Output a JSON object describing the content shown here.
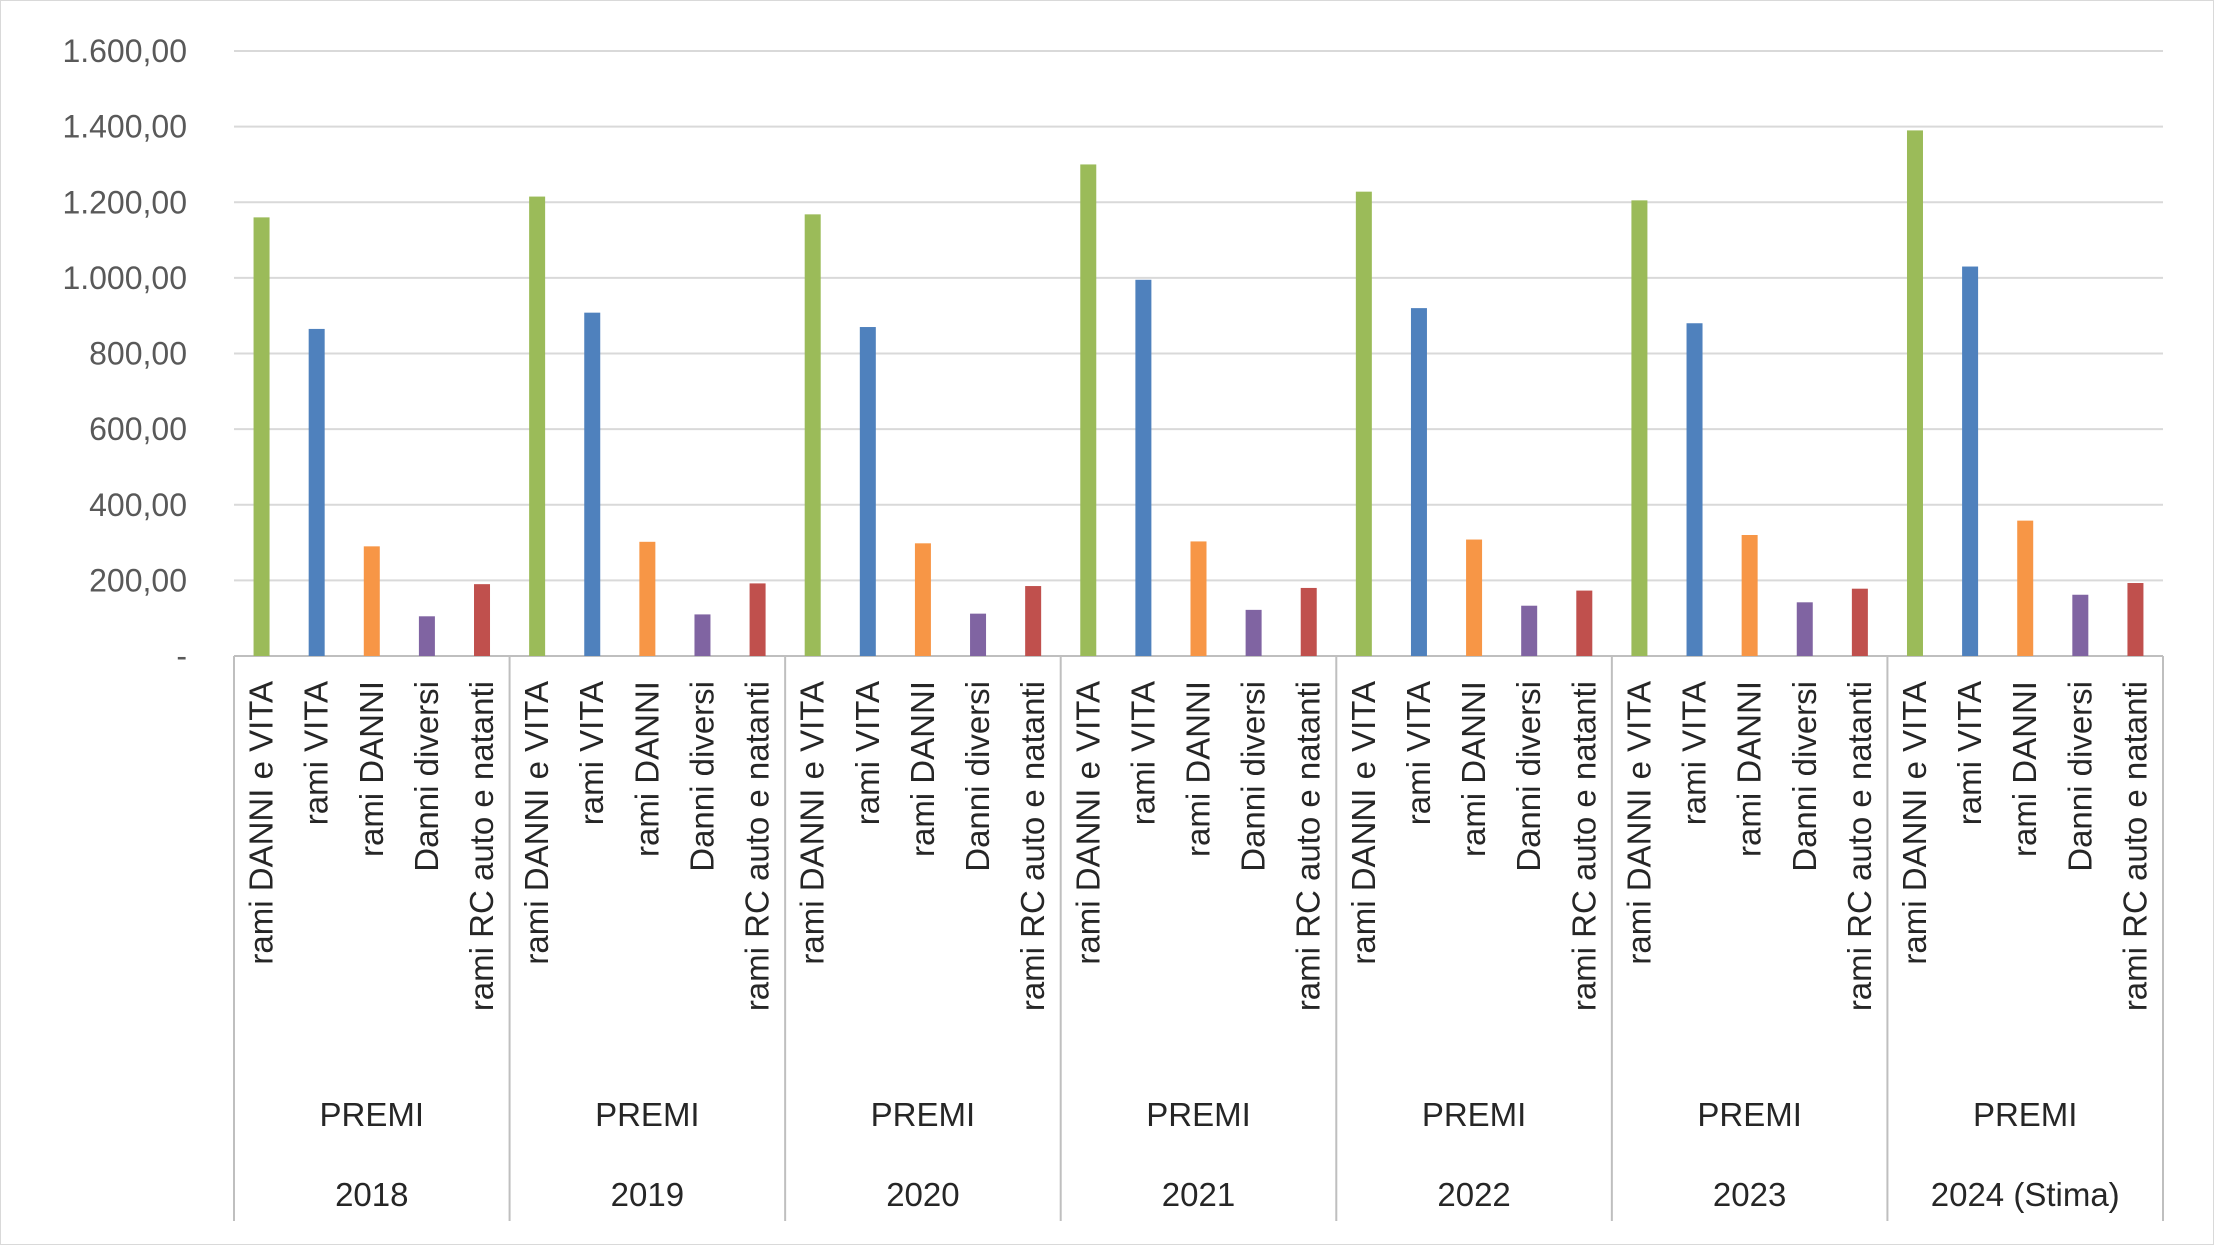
{
  "chart_data": {
    "type": "bar",
    "ylim": [
      0,
      1600
    ],
    "y_ticks": [
      {
        "value": 0,
        "label": "-"
      },
      {
        "value": 200,
        "label": "200,00"
      },
      {
        "value": 400,
        "label": "400,00"
      },
      {
        "value": 600,
        "label": "600,00"
      },
      {
        "value": 800,
        "label": "800,00"
      },
      {
        "value": 1000,
        "label": "1.000,00"
      },
      {
        "value": 1200,
        "label": "1.200,00"
      },
      {
        "value": 1400,
        "label": "1.400,00"
      },
      {
        "value": 1600,
        "label": "1.600,00"
      }
    ],
    "grid": true,
    "categories": [
      "rami DANNI e VITA",
      "rami VITA",
      "rami DANNI",
      "Danni diversi",
      "rami RC auto e natanti"
    ],
    "category_colors": [
      "#9bbb59",
      "#4f81bd",
      "#f79646",
      "#8064a2",
      "#c0504d"
    ],
    "groups": [
      {
        "year": "2018",
        "label": "PREMI",
        "values": [
          1160,
          865,
          290,
          105,
          190
        ]
      },
      {
        "year": "2019",
        "label": "PREMI",
        "values": [
          1215,
          908,
          302,
          110,
          192
        ]
      },
      {
        "year": "2020",
        "label": "PREMI",
        "values": [
          1168,
          870,
          298,
          112,
          185
        ]
      },
      {
        "year": "2021",
        "label": "PREMI",
        "values": [
          1300,
          995,
          303,
          122,
          180
        ]
      },
      {
        "year": "2022",
        "label": "PREMI",
        "values": [
          1228,
          920,
          308,
          133,
          173
        ]
      },
      {
        "year": "2023",
        "label": "PREMI",
        "values": [
          1205,
          880,
          320,
          142,
          178
        ]
      },
      {
        "year": "2024 (Stima)",
        "label": "PREMI",
        "values": [
          1390,
          1030,
          358,
          162,
          193
        ]
      }
    ]
  }
}
